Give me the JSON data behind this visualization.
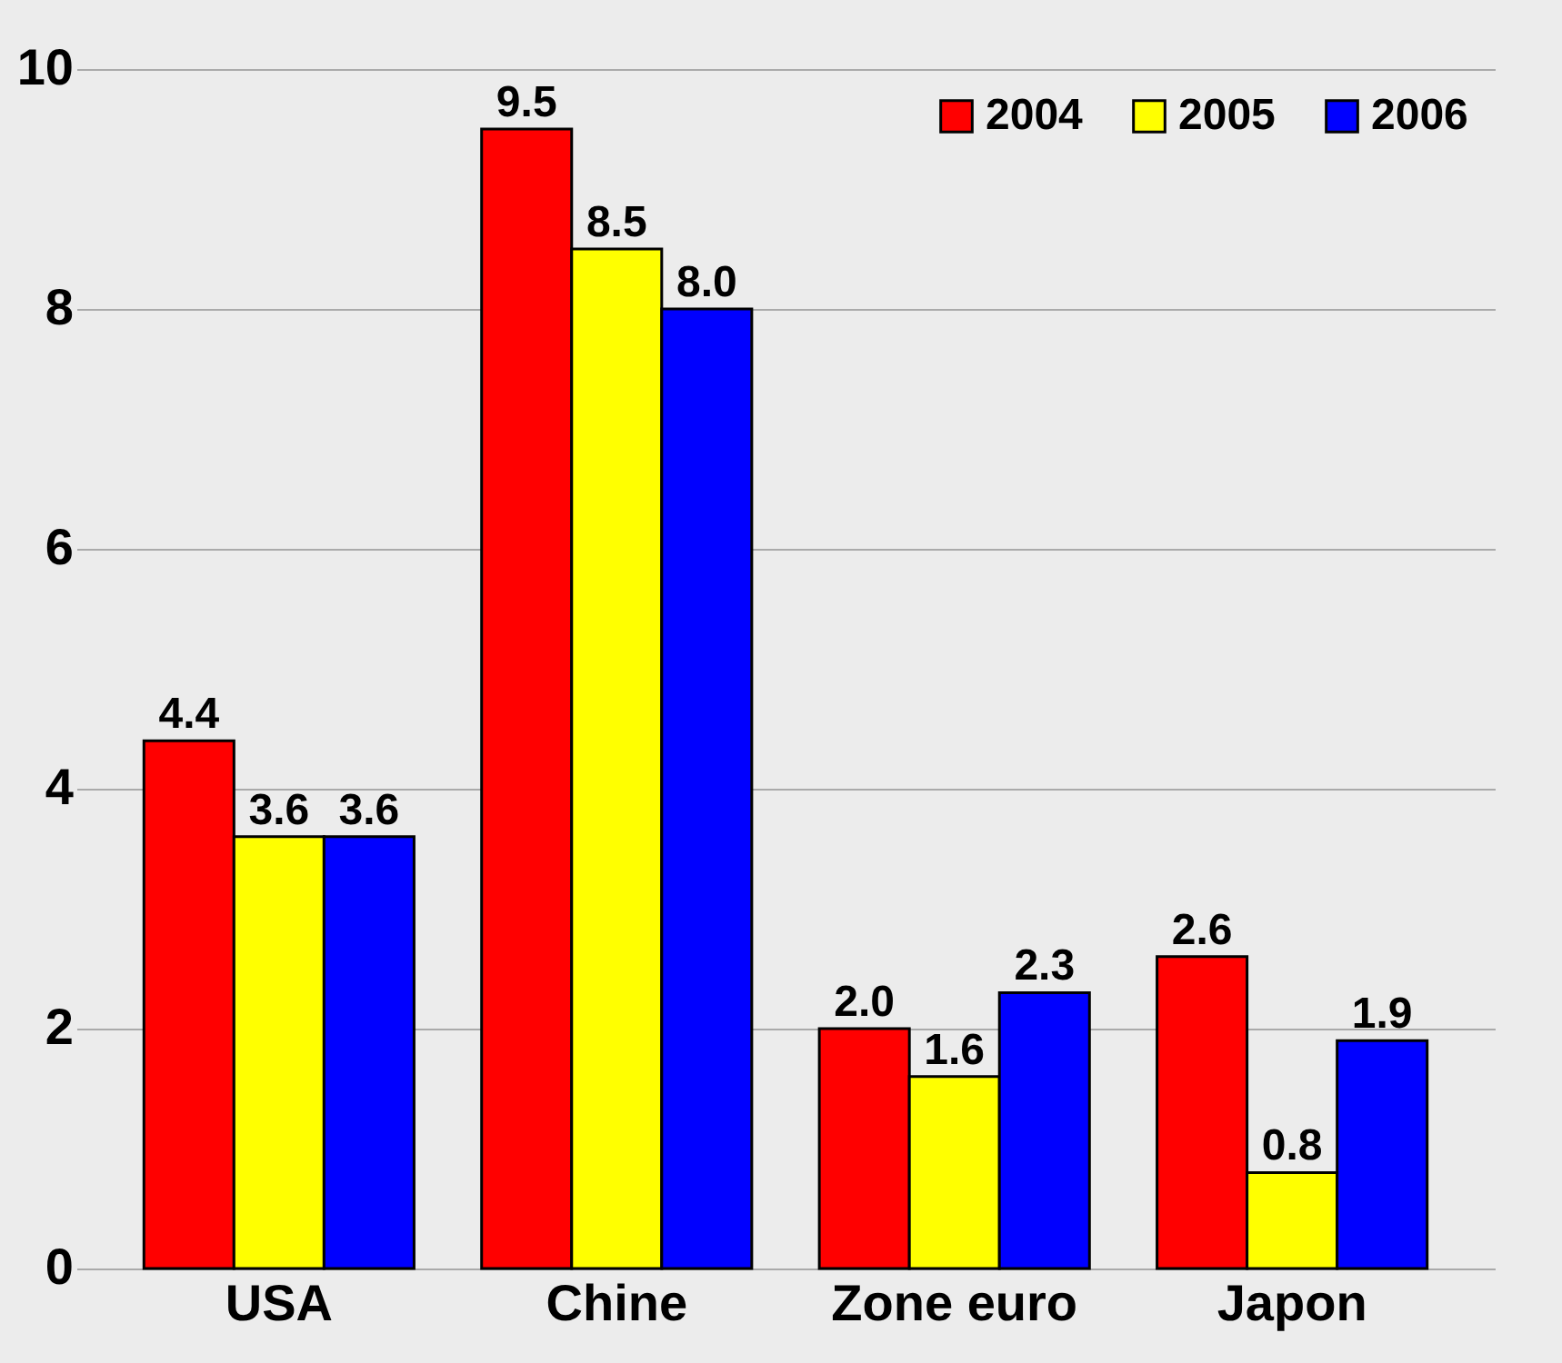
{
  "chart_data": {
    "type": "bar",
    "categories": [
      "USA",
      "Chine",
      "Zone euro",
      "Japon"
    ],
    "series": [
      {
        "name": "2004",
        "color": "#ff0000",
        "values": [
          4.4,
          9.5,
          2.0,
          2.6
        ],
        "value_labels": [
          "4.4",
          "9.5",
          "2.0",
          "2.6"
        ]
      },
      {
        "name": "2005",
        "color": "#ffff00",
        "values": [
          3.6,
          8.5,
          1.6,
          0.8
        ],
        "value_labels": [
          "3.6",
          "8.5",
          "1.6",
          "0.8"
        ]
      },
      {
        "name": "2006",
        "color": "#0000ff",
        "values": [
          3.6,
          8.0,
          2.3,
          1.9
        ],
        "value_labels": [
          "3.6",
          "8.0",
          "2.3",
          "1.9"
        ]
      }
    ],
    "ylim": [
      0,
      10
    ],
    "yticks": [
      0,
      2,
      4,
      6,
      8,
      10
    ],
    "grid": "y",
    "legend": "top right"
  }
}
